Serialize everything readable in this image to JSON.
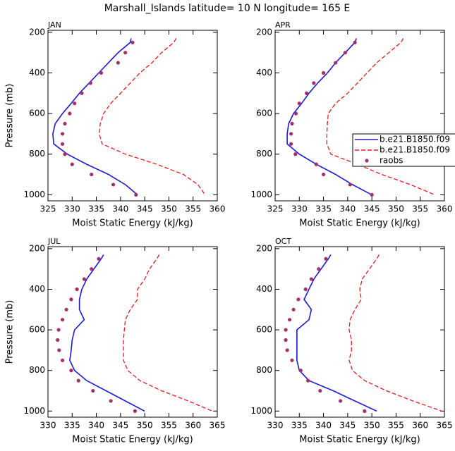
{
  "title": "Marshall_Islands  latitude= 10 N longitude= 165 E",
  "chart_data": [
    {
      "type": "line",
      "title": "JAN",
      "x_label": "Moist Static Energy (kJ/kg)",
      "y_label": "Pressure (mb)",
      "y": [
        230,
        250,
        300,
        350,
        400,
        450,
        500,
        550,
        600,
        650,
        700,
        750,
        800,
        850,
        900,
        950,
        1000
      ],
      "series": [
        {
          "color": "#1a1ad8",
          "dash": false,
          "marker": false,
          "values": [
            342.2,
            342,
            339.5,
            337.5,
            335.5,
            333.5,
            331.5,
            329.8,
            328,
            326.5,
            326,
            326.2,
            329,
            333,
            337.5,
            341,
            343.5
          ]
        },
        {
          "color": "#e8191e",
          "dash": true,
          "marker": false,
          "values": [
            351.5,
            351,
            348.5,
            346.5,
            344,
            342,
            340,
            338,
            336.5,
            335.8,
            335.6,
            336.2,
            341,
            347.5,
            353,
            356,
            357.5
          ]
        },
        {
          "color": "#a3306e",
          "dash": false,
          "marker": true,
          "values": [
            null,
            342.5,
            341,
            339.5,
            336,
            333.8,
            332,
            330.5,
            329.5,
            328.5,
            328,
            328,
            328.5,
            330,
            334,
            338.5,
            343.2
          ]
        }
      ],
      "xlim": [
        325,
        360
      ],
      "xticks": [
        325,
        330,
        335,
        340,
        345,
        350,
        355,
        360
      ],
      "ylim": [
        190,
        1030
      ],
      "yticks": [
        200,
        400,
        600,
        800,
        1000
      ],
      "y_reversed": true
    },
    {
      "type": "line",
      "title": "APR",
      "x_label": "Moist Static Energy (kJ/kg)",
      "y": [
        230,
        250,
        300,
        350,
        400,
        450,
        500,
        550,
        600,
        650,
        700,
        750,
        800,
        850,
        900,
        950,
        1000
      ],
      "series": [
        {
          "name": "b.e21.B1850.f09",
          "color": "#1a1ad8",
          "dash": false,
          "marker": false,
          "values": [
            341.8,
            341.5,
            339.5,
            337.5,
            335.8,
            333.8,
            332,
            330.5,
            328.8,
            327.8,
            327.5,
            327.5,
            330,
            333.5,
            337.5,
            341,
            345
          ]
        },
        {
          "name": "b.e21.B1850.f09",
          "color": "#e8191e",
          "dash": true,
          "marker": false,
          "values": [
            351.5,
            351,
            348.5,
            346,
            344,
            342,
            340,
            337.5,
            336,
            335.8,
            335.7,
            335.7,
            336.5,
            342,
            347,
            353,
            358
          ]
        },
        {
          "name": "raobs",
          "color": "#a3306e",
          "dash": false,
          "marker": true,
          "values": [
            null,
            341.5,
            339.5,
            337.5,
            335,
            333,
            331.5,
            330,
            329.3,
            328.5,
            328.3,
            328.3,
            329.2,
            333.5,
            335,
            340.5,
            345
          ]
        }
      ],
      "legend": "right",
      "xlim": [
        325,
        360
      ],
      "xticks": [
        325,
        330,
        335,
        340,
        345,
        350,
        355,
        360
      ],
      "ylim": [
        190,
        1030
      ],
      "yticks": [
        200,
        400,
        600,
        800,
        1000
      ],
      "y_reversed": true
    },
    {
      "type": "line",
      "title": "JUL",
      "x_label": "Moist Static Energy (kJ/kg)",
      "y_label": "Pressure (mb)",
      "y": [
        230,
        250,
        300,
        350,
        400,
        450,
        500,
        550,
        600,
        650,
        700,
        750,
        800,
        850,
        900,
        950,
        1000
      ],
      "series": [
        {
          "color": "#1a1ad8",
          "dash": false,
          "marker": false,
          "values": [
            341.5,
            341,
            339.5,
            338,
            337,
            336.5,
            336.5,
            337.5,
            335.5,
            335,
            334.8,
            334.5,
            335.5,
            338,
            342,
            346,
            350
          ]
        },
        {
          "color": "#e8191e",
          "dash": true,
          "marker": false,
          "values": [
            353,
            352.5,
            351,
            350,
            348.5,
            348.5,
            347,
            346,
            345.8,
            345.6,
            345.6,
            345.6,
            346.5,
            349,
            353.5,
            359,
            364
          ]
        },
        {
          "color": "#a3306e",
          "dash": false,
          "marker": true,
          "values": [
            null,
            340.5,
            339,
            337.5,
            336,
            334.8,
            333.8,
            333,
            332.2,
            332,
            332.3,
            333,
            334.8,
            336.3,
            339.3,
            343,
            348
          ]
        }
      ],
      "xlim": [
        330,
        365
      ],
      "xticks": [
        330,
        335,
        340,
        345,
        350,
        355,
        360,
        365
      ],
      "ylim": [
        190,
        1030
      ],
      "yticks": [
        200,
        400,
        600,
        800,
        1000
      ],
      "y_reversed": true
    },
    {
      "type": "line",
      "title": "OCT",
      "x_label": "Moist Static Energy (kJ/kg)",
      "y": [
        230,
        250,
        300,
        350,
        400,
        450,
        500,
        550,
        600,
        650,
        700,
        750,
        800,
        850,
        900,
        950,
        1000
      ],
      "series": [
        {
          "color": "#1a1ad8",
          "dash": false,
          "marker": false,
          "values": [
            341.5,
            341,
            339.5,
            338,
            337,
            336,
            337.5,
            337,
            334.5,
            334.5,
            334.5,
            334.5,
            335,
            337,
            342,
            346.5,
            351
          ]
        },
        {
          "color": "#e8191e",
          "dash": true,
          "marker": false,
          "values": [
            351.5,
            351,
            349.5,
            348,
            347.5,
            347.8,
            346.5,
            345.5,
            345.3,
            345.8,
            345.8,
            345.3,
            346,
            348.5,
            353,
            358.5,
            364.5
          ]
        },
        {
          "color": "#a3306e",
          "dash": false,
          "marker": true,
          "values": [
            null,
            340.5,
            339,
            337.5,
            336.3,
            334.8,
            333.8,
            333,
            332.2,
            332.2,
            332.5,
            333.5,
            335.3,
            336.8,
            339.3,
            343.5,
            348.5
          ]
        }
      ],
      "xlim": [
        330,
        365
      ],
      "xticks": [
        330,
        335,
        340,
        345,
        350,
        355,
        360,
        365
      ],
      "ylim": [
        190,
        1030
      ],
      "yticks": [
        200,
        400,
        600,
        800,
        1000
      ],
      "y_reversed": true
    }
  ]
}
